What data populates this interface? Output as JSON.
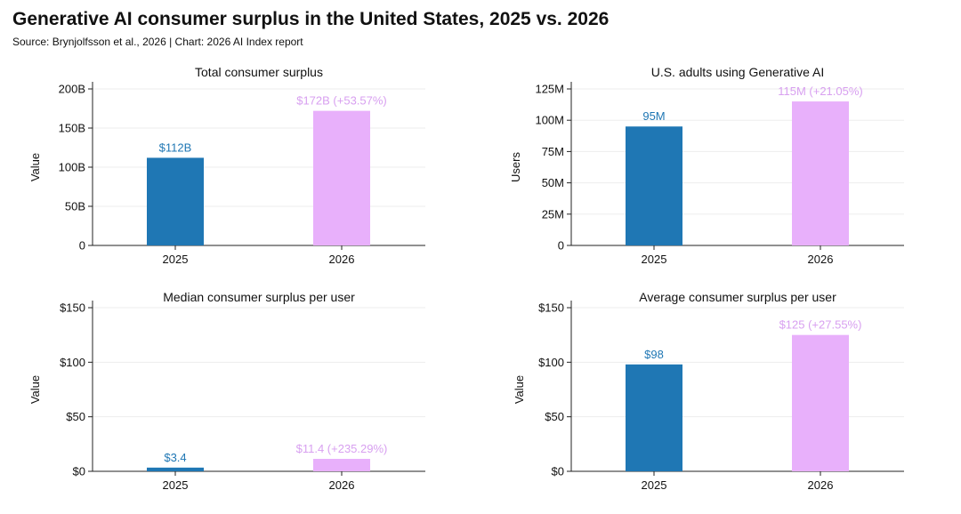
{
  "header": {
    "title": "Generative AI consumer surplus in the United States, 2025 vs. 2026",
    "source": "Source: Brynjolfsson et al., 2026 | Chart: 2026 AI Index report"
  },
  "colors": {
    "series_2025": "#1f77b4",
    "series_2026": "#e8b0fb",
    "label_2026": "#d8a0f0"
  },
  "chart_data": [
    {
      "type": "bar",
      "title": "Total consumer surplus",
      "ylabel": "Value",
      "categories": [
        "2025",
        "2026"
      ],
      "values": [
        112,
        172
      ],
      "data_labels": [
        "$112B",
        "$172B (+53.57%)"
      ],
      "ylim": [
        0,
        200
      ],
      "yticks": [
        0,
        50,
        100,
        150,
        200
      ],
      "ytick_labels": [
        "0",
        "50B",
        "100B",
        "150B",
        "200B"
      ],
      "grid": true
    },
    {
      "type": "bar",
      "title": "U.S. adults using Generative AI",
      "ylabel": "Users",
      "categories": [
        "2025",
        "2026"
      ],
      "values": [
        95,
        115
      ],
      "data_labels": [
        "95M",
        "115M (+21.05%)"
      ],
      "ylim": [
        0,
        125
      ],
      "yticks": [
        0,
        25,
        50,
        75,
        100,
        125
      ],
      "ytick_labels": [
        "0",
        "25M",
        "50M",
        "75M",
        "100M",
        "125M"
      ],
      "grid": true
    },
    {
      "type": "bar",
      "title": "Median consumer surplus per user",
      "ylabel": "Value",
      "categories": [
        "2025",
        "2026"
      ],
      "values": [
        3.4,
        11.4
      ],
      "data_labels": [
        "$3.4",
        "$11.4 (+235.29%)"
      ],
      "ylim": [
        0,
        150
      ],
      "yticks": [
        0,
        50,
        100,
        150
      ],
      "ytick_labels": [
        "$0",
        "$50",
        "$100",
        "$150"
      ],
      "grid": true
    },
    {
      "type": "bar",
      "title": "Average consumer surplus per user",
      "ylabel": "Value",
      "categories": [
        "2025",
        "2026"
      ],
      "values": [
        98,
        125
      ],
      "data_labels": [
        "$98",
        "$125 (+27.55%)"
      ],
      "ylim": [
        0,
        150
      ],
      "yticks": [
        0,
        50,
        100,
        150
      ],
      "ytick_labels": [
        "$0",
        "$50",
        "$100",
        "$150"
      ],
      "grid": true
    }
  ]
}
